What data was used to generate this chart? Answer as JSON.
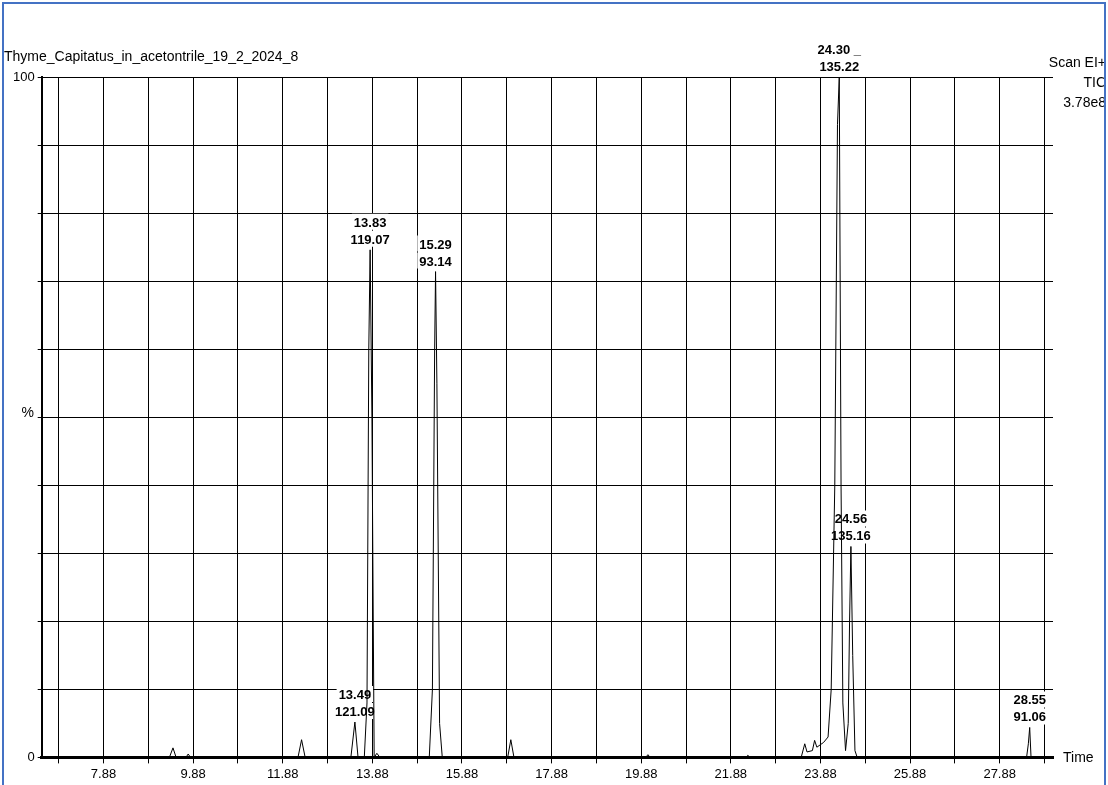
{
  "chart_data": {
    "type": "line",
    "title": "Thyme_Capitatus_in_acetontrile_19_2_2024_8",
    "xlabel": "Time",
    "ylabel": "%",
    "annotations": [
      "Scan EI+",
      "TIC",
      "3.78e8",
      {
        "text": "13.49\n121.09",
        "x": 13.49,
        "y": 5.2
      },
      {
        "text": "13.83\n119.07",
        "x": 13.83,
        "y": 74.6
      },
      {
        "text": "15.29\n93.14",
        "x": 15.29,
        "y": 71.4
      },
      {
        "text": "24.30 _\n135.22",
        "x": 24.3,
        "y": 100
      },
      {
        "text": "24.56\n135.16",
        "x": 24.56,
        "y": 31
      },
      {
        "text": "28.55\n91.06",
        "x": 28.55,
        "y": 4.4
      }
    ],
    "x": [
      6.5,
      9.35,
      9.43,
      9.5,
      9.72,
      9.77,
      9.82,
      12.22,
      12.3,
      12.38,
      13.4,
      13.49,
      13.56,
      13.7,
      13.76,
      13.8,
      13.83,
      13.87,
      13.92,
      13.98,
      14.05,
      15.15,
      15.22,
      15.27,
      15.29,
      15.32,
      15.38,
      15.44,
      16.9,
      16.97,
      17.04,
      19.98,
      20.03,
      20.08,
      22.21,
      22.26,
      22.31,
      23.45,
      23.53,
      23.58,
      23.7,
      23.75,
      23.8,
      23.95,
      24.05,
      24.12,
      24.2,
      24.26,
      24.3,
      24.34,
      24.38,
      24.44,
      24.5,
      24.53,
      24.56,
      24.6,
      24.65,
      24.7,
      28.48,
      28.52,
      28.55,
      28.58,
      29.07
    ],
    "series": [
      {
        "color": "#000000",
        "values": [
          0,
          0,
          1.4,
          0,
          0,
          0.5,
          0,
          0,
          2.6,
          0,
          0,
          5.2,
          0,
          0,
          8,
          60,
          74.6,
          50,
          0,
          0.6,
          0,
          0,
          10,
          60,
          71.4,
          55,
          5,
          0,
          0,
          2.6,
          0,
          0,
          0.4,
          0,
          0,
          0.3,
          0,
          0,
          2,
          0.8,
          1,
          2.5,
          1.5,
          2.2,
          3,
          10,
          40,
          93,
          100,
          40,
          8,
          1,
          5,
          20,
          31,
          15,
          1,
          0,
          0,
          2,
          4.4,
          0,
          0
        ]
      }
    ],
    "xlim": [
      6.5,
      29.07
    ],
    "xticks": [
      {
        "value": 6.88,
        "label": null
      },
      7.88,
      {
        "value": 8.88,
        "label": null
      },
      9.88,
      {
        "value": 10.88,
        "label": null
      },
      11.88,
      {
        "value": 12.88,
        "label": null
      },
      13.88,
      {
        "value": 14.88,
        "label": null
      },
      15.88,
      {
        "value": 16.88,
        "label": null
      },
      17.88,
      {
        "value": 18.88,
        "label": null
      },
      19.88,
      {
        "value": 20.88,
        "label": null
      },
      21.88,
      {
        "value": 22.88,
        "label": null
      },
      23.88,
      {
        "value": 24.88,
        "label": null
      },
      25.88,
      {
        "value": 26.88,
        "label": null
      },
      27.88,
      {
        "value": 28.88,
        "label": null
      }
    ],
    "ylim": [
      0,
      100
    ],
    "yticks": [
      0,
      {
        "value": 10,
        "label": null
      },
      {
        "value": 20,
        "label": null
      },
      {
        "value": 30,
        "label": null
      },
      {
        "value": 40,
        "label": null
      },
      {
        "value": 50,
        "label": null
      },
      {
        "value": 60,
        "label": null
      },
      {
        "value": 70,
        "label": null
      },
      {
        "value": 80,
        "label": null
      },
      {
        "value": 90,
        "label": null
      },
      100
    ],
    "grid": true,
    "legend": false,
    "marker": "none",
    "line_style": "solid"
  }
}
